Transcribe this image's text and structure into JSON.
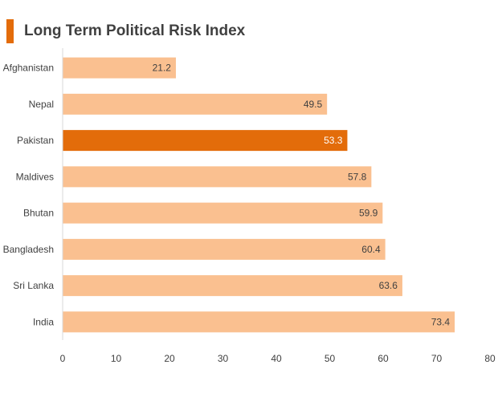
{
  "title": "Long Term Political Risk Index",
  "colors": {
    "accent": "#e36c0a",
    "bar": "#fac090",
    "highlight": "#e36c0a",
    "axis": "#d9d9d9",
    "label": "#404040"
  },
  "chart_data": {
    "type": "bar",
    "orientation": "horizontal",
    "title": "Long Term Political Risk Index",
    "categories": [
      "Afghanistan",
      "Nepal",
      "Pakistan",
      "Maldives",
      "Bhutan",
      "Bangladesh",
      "Sri Lanka",
      "India"
    ],
    "values": [
      21.2,
      49.5,
      53.3,
      57.8,
      59.9,
      60.4,
      63.6,
      73.4
    ],
    "value_labels": [
      "21.2",
      "49.5",
      "53.3",
      "57.8",
      "59.9",
      "60.4",
      "63.6",
      "73.4"
    ],
    "highlight": "Pakistan",
    "xlim": [
      0,
      80
    ],
    "xticks": [
      0,
      10,
      20,
      30,
      40,
      50,
      60,
      70,
      80
    ],
    "xtick_labels": [
      "0",
      "10",
      "20",
      "30",
      "40",
      "50",
      "60",
      "70",
      "80"
    ],
    "xlabel": "",
    "ylabel": "",
    "grid": false,
    "legend": "none"
  }
}
